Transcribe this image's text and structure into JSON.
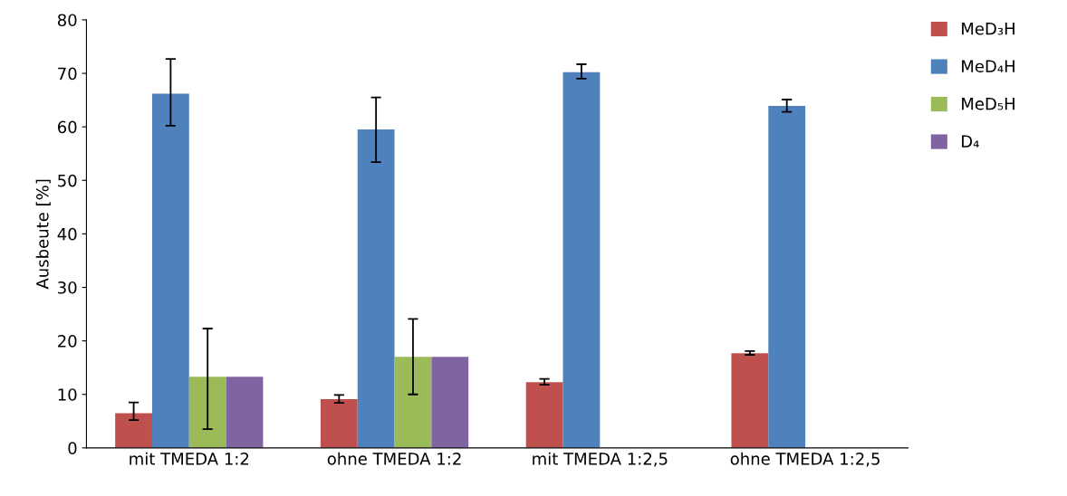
{
  "chart_data": {
    "type": "bar",
    "ylabel": "Ausbeute [%]",
    "categories": [
      "mit TMEDA 1:2",
      "ohne TMEDA 1:2",
      "mit TMEDA 1:2,5",
      "ohne TMEDA 1:2,5"
    ],
    "series": [
      {
        "name": "MeD₃H",
        "color": "#c0504d",
        "values": [
          6.5,
          9.1,
          12.3,
          17.7
        ],
        "errors": [
          [
            5.2,
            8.5
          ],
          [
            8.4,
            9.9
          ],
          [
            11.8,
            12.9
          ],
          [
            17.4,
            18.1
          ]
        ]
      },
      {
        "name": "MeD₄H",
        "color": "#4f81bd",
        "values": [
          66.2,
          59.5,
          70.2,
          63.9
        ],
        "errors": [
          [
            60.2,
            72.7
          ],
          [
            53.4,
            65.5
          ],
          [
            69.0,
            71.7
          ],
          [
            62.8,
            65.1
          ]
        ]
      },
      {
        "name": "MeD₅H",
        "color": "#9bbb59",
        "values": [
          13.3,
          17.0,
          0,
          0
        ],
        "errors": [
          [
            3.5,
            22.3
          ],
          [
            10.0,
            24.1
          ],
          null,
          null
        ]
      },
      {
        "name": "D₄",
        "color": "#8064a2",
        "values": [
          13.3,
          17.0,
          0,
          0
        ]
      }
    ],
    "ylim": [
      0,
      80
    ],
    "yticks": [
      0,
      10,
      20,
      30,
      40,
      50,
      60,
      70,
      80
    ],
    "grid": false,
    "legend": "top right"
  }
}
